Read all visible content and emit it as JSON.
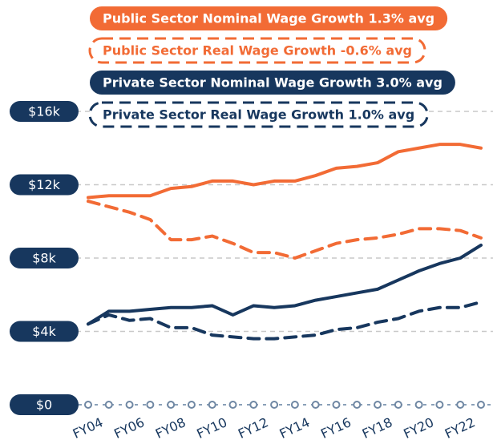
{
  "chart_data": {
    "type": "line",
    "categories": [
      "FY04",
      null,
      "FY06",
      null,
      "FY08",
      null,
      "FY10",
      null,
      "FY12",
      null,
      "FY14",
      null,
      "FY16",
      null,
      "FY18",
      null,
      "FY20",
      null,
      "FY22",
      null
    ],
    "series": [
      {
        "name": "Public Sector Nominal Wage Growth 1.3% avg",
        "color": "#f26b35",
        "line_style": "solid",
        "values": [
          11300,
          11400,
          11400,
          11400,
          11800,
          11900,
          12200,
          12200,
          12000,
          12200,
          12200,
          12500,
          12900,
          13000,
          13200,
          13800,
          14000,
          14200,
          14200,
          14000
        ]
      },
      {
        "name": "Public Sector Real Wage Growth -0.6% avg",
        "color": "#f26b35",
        "line_style": "dashed",
        "values": [
          11100,
          10800,
          10500,
          10100,
          9000,
          9000,
          9200,
          8800,
          8300,
          8300,
          8000,
          8400,
          8800,
          9000,
          9100,
          9300,
          9600,
          9600,
          9500,
          9100
        ]
      },
      {
        "name": "Private Sector Nominal Wage Growth 3.0% avg",
        "color": "#17375e",
        "line_style": "solid",
        "values": [
          4400,
          5100,
          5100,
          5200,
          5300,
          5300,
          5400,
          4900,
          5400,
          5300,
          5400,
          5700,
          5900,
          6100,
          6300,
          6800,
          7300,
          7700,
          8000,
          8700
        ]
      },
      {
        "name": "Private Sector Real Wage Growth 1.0% avg",
        "color": "#17375e",
        "line_style": "dashed",
        "values": [
          4400,
          4900,
          4600,
          4700,
          4200,
          4200,
          3800,
          3700,
          3600,
          3600,
          3700,
          3800,
          4100,
          4200,
          4500,
          4700,
          5100,
          5300,
          5300,
          5600
        ]
      }
    ],
    "ylim": [
      0,
      16000
    ],
    "yticks": [
      {
        "value": 0,
        "label": "$0"
      },
      {
        "value": 4000,
        "label": "$4k"
      },
      {
        "value": 8000,
        "label": "$8k"
      },
      {
        "value": 12000,
        "label": "$12k"
      },
      {
        "value": 16000,
        "label": "$16k"
      }
    ],
    "grid": true
  }
}
